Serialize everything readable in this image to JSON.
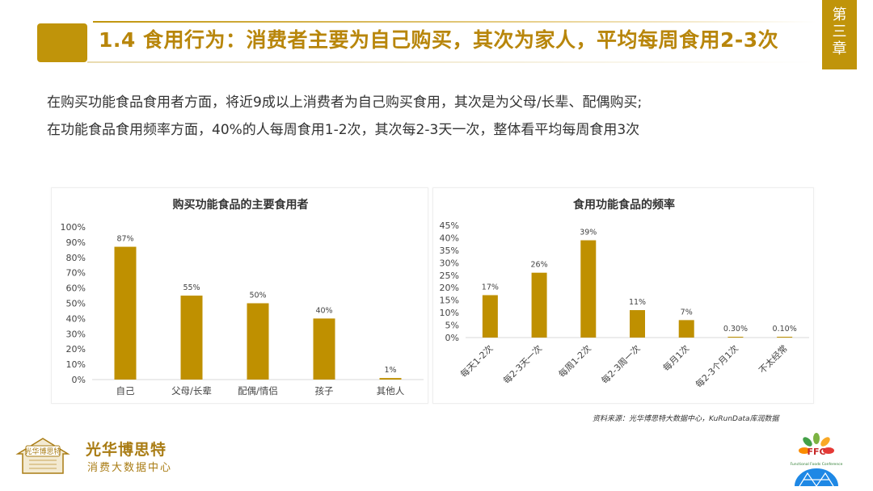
{
  "header": {
    "title": "1.4 食用行为：消费者主要为自己购买，其次为家人，平均每周食用2-3次",
    "chapter": [
      "第",
      "三",
      "章"
    ]
  },
  "description": [
    "在购买功能食品食用者方面，将近9成以上消费者为自己购买食用，其次是为父母/长辈、配偶购买;",
    "在功能食品食用频率方面，40%的人每周食用1-2次，其次每2-3天一次，整体看平均每周食用3次"
  ],
  "chart_data": [
    {
      "type": "bar",
      "title": "购买功能食品的主要食用者",
      "categories": [
        "自己",
        "父母/长辈",
        "配偶/情侣",
        "孩子",
        "其他人"
      ],
      "values": [
        87,
        55,
        50,
        40,
        1
      ],
      "value_labels": [
        "87%",
        "55%",
        "50%",
        "40%",
        "1%"
      ],
      "ylim": [
        0,
        100
      ],
      "yticks": [
        "0%",
        "10%",
        "20%",
        "30%",
        "40%",
        "50%",
        "60%",
        "70%",
        "80%",
        "90%",
        "100%"
      ],
      "color": "#bf9000",
      "grid": false
    },
    {
      "type": "bar",
      "title": "食用功能食品的频率",
      "categories": [
        "每天1-2次",
        "每2-3天一次",
        "每周1-2次",
        "每2-3周一次",
        "每月1次",
        "每2-3个月1次",
        "不太经常"
      ],
      "values": [
        17,
        26,
        39,
        11,
        7,
        0.3,
        0.1
      ],
      "value_labels": [
        "17%",
        "26%",
        "39%",
        "11%",
        "7%",
        "0.30%",
        "0.10%"
      ],
      "ylim": [
        0,
        45
      ],
      "yticks": [
        "0%",
        "5%",
        "10%",
        "15%",
        "20%",
        "25%",
        "30%",
        "35%",
        "40%",
        "45%"
      ],
      "color": "#bf9000",
      "grid": false
    }
  ],
  "source": "资料来源：光华博思特大数据中心，KuRunData库润数据",
  "logo_left": {
    "name": "光华博思特",
    "subtitle": "消费大数据中心",
    "emblem_text": "光华博思特"
  },
  "logo_right": {
    "name": "FFC",
    "subtitle": "Functional Foods Conference"
  },
  "colors": {
    "accent": "#c0940a",
    "bar": "#bf9000",
    "title": "#b8860b"
  }
}
